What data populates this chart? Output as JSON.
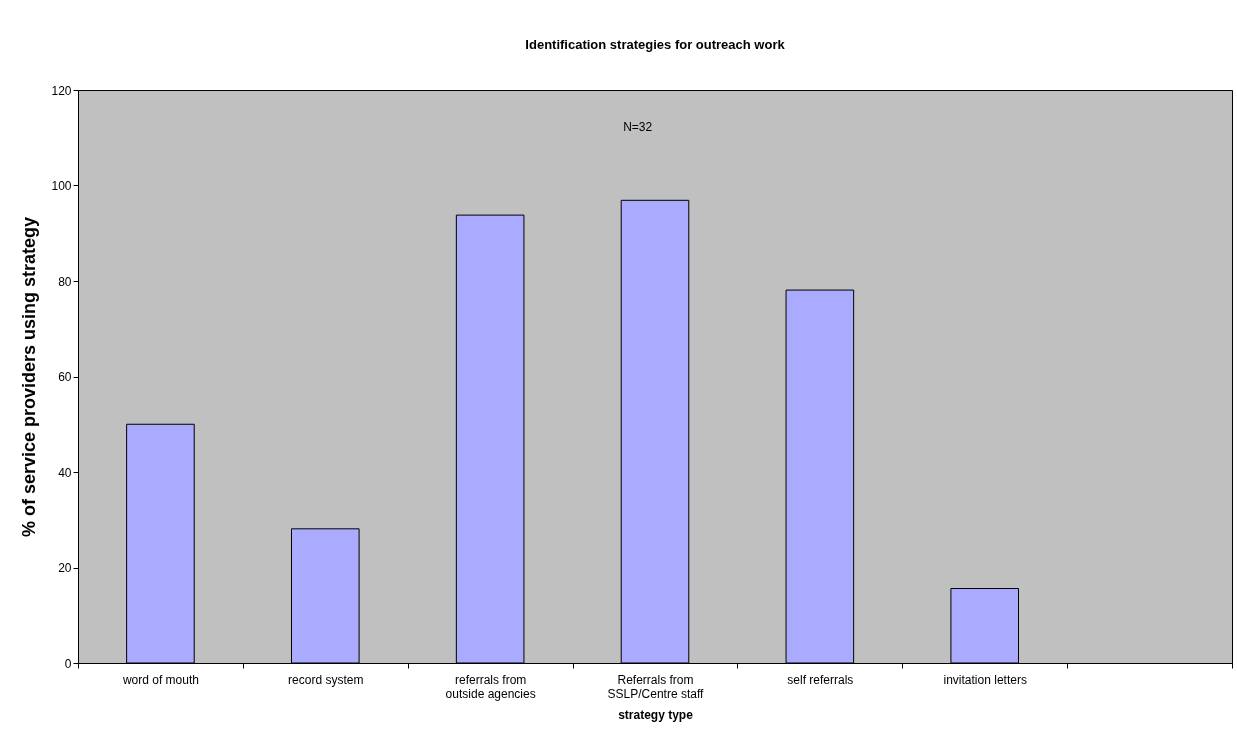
{
  "chart_data": {
    "type": "bar",
    "title": "Identification strategies for outreach work",
    "xlabel": "strategy type",
    "ylabel": "% of service providers using strategy",
    "categories": [
      "word of mouth",
      "record system",
      "referrals from outside agencies",
      "Referrals from SSLP/Centre staff",
      "self referrals",
      "invitation letters",
      null
    ],
    "values": [
      50,
      28.1,
      93.8,
      96.9,
      78.1,
      15.6,
      null
    ],
    "color": "#aaaaff",
    "ylim": [
      0,
      120
    ],
    "yticks": [
      0,
      20,
      40,
      60,
      80,
      100,
      120
    ],
    "grid": false,
    "annotations": [
      "N=32"
    ]
  }
}
